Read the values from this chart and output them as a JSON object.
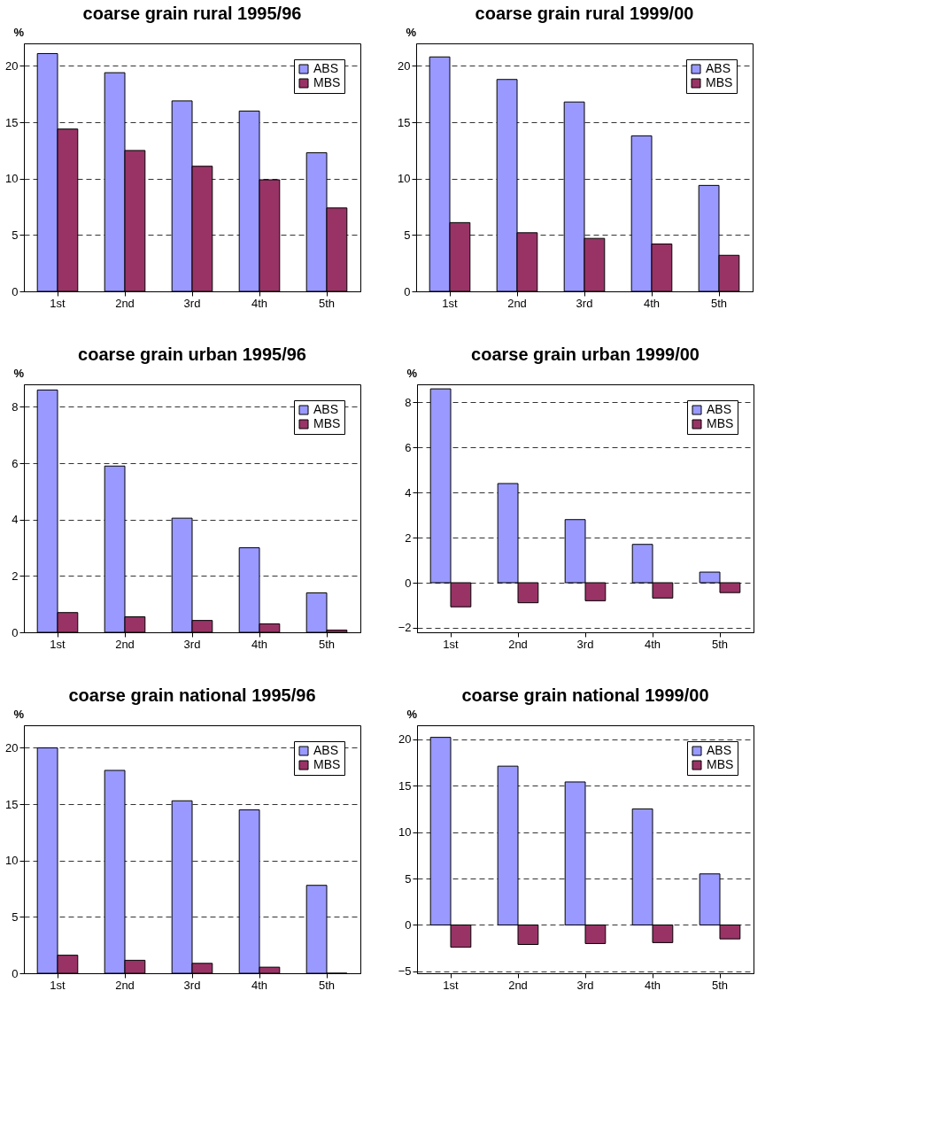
{
  "chart_data": [
    {
      "type": "bar",
      "title": "coarse grain rural 1995/96",
      "ylabel": "%",
      "categories": [
        "1st",
        "2nd",
        "3rd",
        "4th",
        "5th"
      ],
      "series": [
        {
          "name": "ABS",
          "color": "#9999ff",
          "values": [
            21.1,
            19.4,
            16.9,
            16.0,
            12.3
          ]
        },
        {
          "name": "MBS",
          "color": "#993366",
          "values": [
            14.4,
            12.5,
            11.1,
            9.9,
            7.4
          ]
        }
      ],
      "ylim": [
        0,
        22
      ],
      "yticks": [
        0,
        5,
        10,
        15,
        20
      ],
      "grid": "y",
      "legend": "top right"
    },
    {
      "type": "bar",
      "title": "coarse grain rural 1999/00",
      "ylabel": "%",
      "categories": [
        "1st",
        "2nd",
        "3rd",
        "4th",
        "5th"
      ],
      "series": [
        {
          "name": "ABS",
          "color": "#9999ff",
          "values": [
            20.8,
            18.8,
            16.8,
            13.8,
            9.4
          ]
        },
        {
          "name": "MBS",
          "color": "#993366",
          "values": [
            6.1,
            5.2,
            4.7,
            4.2,
            3.2
          ]
        }
      ],
      "ylim": [
        0,
        22
      ],
      "yticks": [
        0,
        5,
        10,
        15,
        20
      ],
      "grid": "y",
      "legend": "top right"
    },
    {
      "type": "bar",
      "title": "coarse grain urban 1995/96",
      "ylabel": "%",
      "categories": [
        "1st",
        "2nd",
        "3rd",
        "4th",
        "5th"
      ],
      "series": [
        {
          "name": "ABS",
          "color": "#9999ff",
          "values": [
            8.6,
            5.9,
            4.05,
            3.0,
            1.4
          ]
        },
        {
          "name": "MBS",
          "color": "#993366",
          "values": [
            0.7,
            0.55,
            0.42,
            0.3,
            0.08
          ]
        }
      ],
      "ylim": [
        0,
        8.8
      ],
      "yticks": [
        0,
        2,
        4,
        6,
        8
      ],
      "grid": "y",
      "legend": "top right"
    },
    {
      "type": "bar",
      "title": "coarse grain urban 1999/00",
      "ylabel": "%",
      "categories": [
        "1st",
        "2nd",
        "3rd",
        "4th",
        "5th"
      ],
      "series": [
        {
          "name": "ABS",
          "color": "#9999ff",
          "values": [
            8.6,
            4.4,
            2.8,
            1.7,
            0.47
          ]
        },
        {
          "name": "MBS",
          "color": "#993366",
          "values": [
            -1.07,
            -0.89,
            -0.8,
            -0.68,
            -0.44
          ]
        }
      ],
      "ylim": [
        -2.2,
        8.8
      ],
      "yticks": [
        -2,
        0,
        2,
        4,
        6,
        8
      ],
      "grid": "y",
      "legend": "top right"
    },
    {
      "type": "bar",
      "title": "coarse grain national 1995/96",
      "ylabel": "%",
      "categories": [
        "1st",
        "2nd",
        "3rd",
        "4th",
        "5th"
      ],
      "series": [
        {
          "name": "ABS",
          "color": "#9999ff",
          "values": [
            20.0,
            18.0,
            15.3,
            14.5,
            7.8
          ]
        },
        {
          "name": "MBS",
          "color": "#993366",
          "values": [
            1.6,
            1.15,
            0.88,
            0.54,
            0
          ]
        }
      ],
      "ylim": [
        0,
        22
      ],
      "yticks": [
        0,
        5,
        10,
        15,
        20
      ],
      "grid": "y",
      "legend": "top right"
    },
    {
      "type": "bar",
      "title": "coarse grain national 1999/00",
      "ylabel": "%",
      "categories": [
        "1st",
        "2nd",
        "3rd",
        "4th",
        "5th"
      ],
      "series": [
        {
          "name": "ABS",
          "color": "#9999ff",
          "values": [
            20.2,
            17.1,
            15.4,
            12.5,
            5.5
          ]
        },
        {
          "name": "MBS",
          "color": "#993366",
          "values": [
            -2.4,
            -2.1,
            -2.0,
            -1.9,
            -1.5
          ]
        }
      ],
      "ylim": [
        -5.2,
        21.5
      ],
      "yticks": [
        -5,
        0,
        5,
        10,
        15,
        20
      ],
      "grid": "y",
      "legend": "top right"
    }
  ]
}
